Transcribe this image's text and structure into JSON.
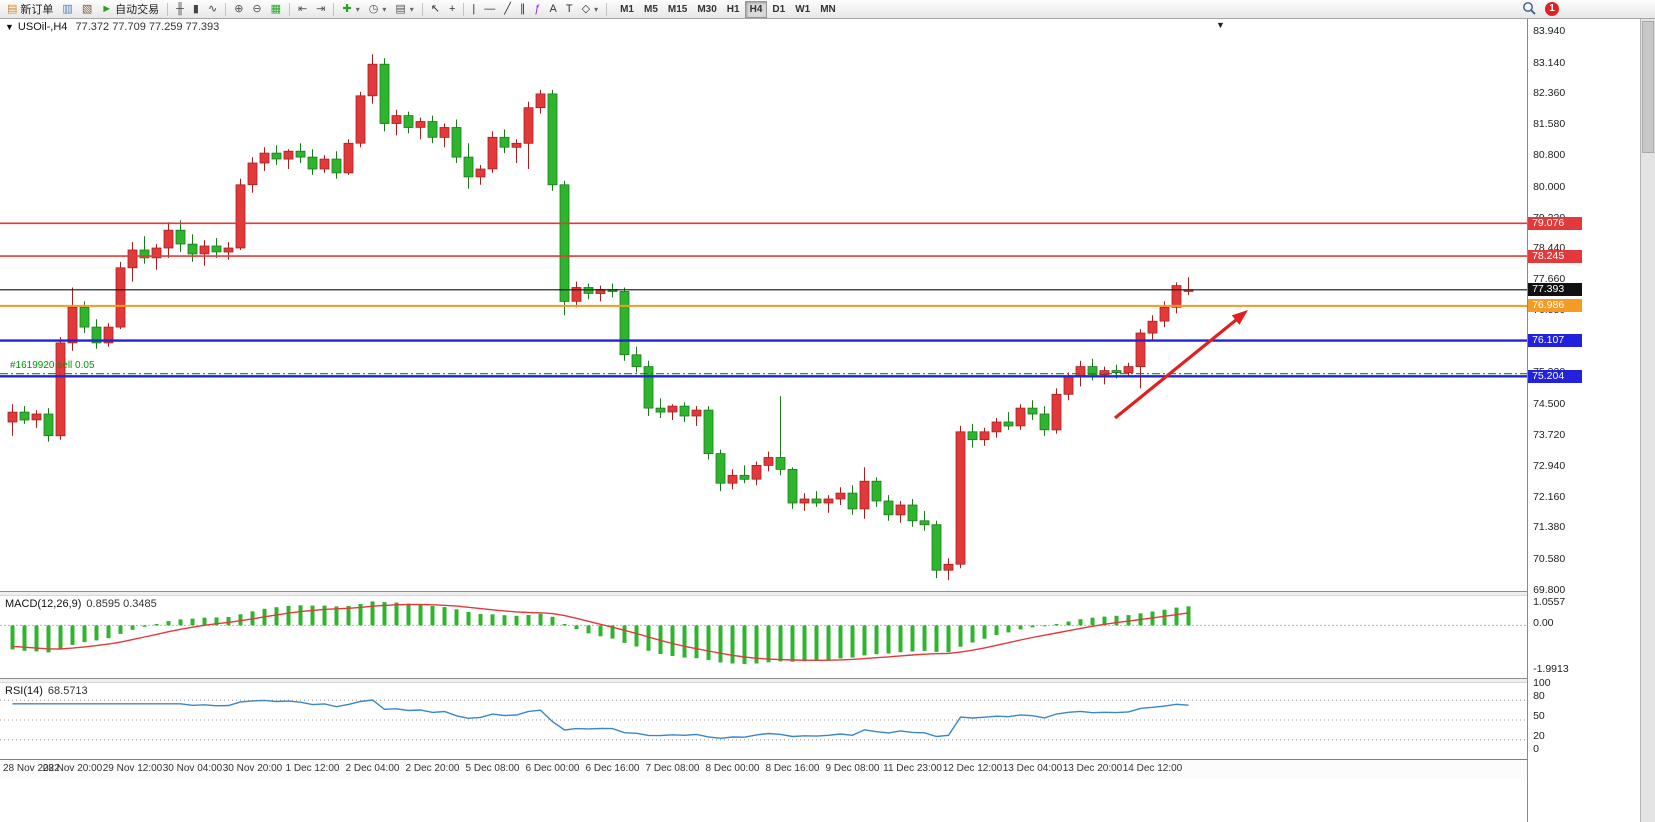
{
  "toolbar": {
    "badge": "1",
    "left_items": [
      {
        "name": "new-order-button",
        "glyph": "▤",
        "glyph_color": "#d08a2e",
        "label": "新订单"
      },
      {
        "name": "chart-window-icon",
        "glyph": "▥",
        "glyph_color": "#4a7ebb"
      },
      {
        "name": "profiles-icon",
        "glyph": "▧",
        "glyph_color": "#7a5c2e"
      },
      {
        "name": "autotrading-button",
        "glyph": "►",
        "glyph_color": "#23a523",
        "label": "自动交易"
      },
      {
        "sep": true
      },
      {
        "name": "bar-chart-icon",
        "glyph": "╫",
        "glyph_color": "#444"
      },
      {
        "name": "candlestick-chart-icon",
        "glyph": "▮",
        "glyph_color": "#444"
      },
      {
        "name": "line-chart-icon",
        "glyph": "∿",
        "glyph_color": "#444"
      },
      {
        "sep": true
      },
      {
        "name": "zoom-in-icon",
        "glyph": "⊕",
        "glyph_color": "#555"
      },
      {
        "name": "zoom-out-icon",
        "glyph": "⊖",
        "glyph_color": "#555"
      },
      {
        "name": "tile-windows-icon",
        "glyph": "▦",
        "glyph_color": "#23a523"
      },
      {
        "sep": true
      },
      {
        "name": "auto-scroll-icon",
        "glyph": "⇤",
        "glyph_color": "#555"
      },
      {
        "name": "chart-shift-icon",
        "glyph": "⇥",
        "glyph_color": "#555"
      },
      {
        "sep": true
      },
      {
        "name": "indicators-icon",
        "glyph": "✚",
        "glyph_color": "#23a523",
        "dropdown": true
      },
      {
        "name": "periods-icon",
        "glyph": "◷",
        "glyph_color": "#555",
        "dropdown": true
      },
      {
        "name": "templates-icon",
        "glyph": "▤",
        "glyph_color": "#555",
        "dropdown": true
      },
      {
        "sep": true
      },
      {
        "name": "cursor-icon",
        "glyph": "↖",
        "glyph_color": "#333"
      },
      {
        "name": "crosshair-icon",
        "glyph": "+",
        "glyph_color": "#333"
      },
      {
        "sep": true
      },
      {
        "name": "vertical-line-icon",
        "glyph": "|",
        "glyph_color": "#333"
      },
      {
        "name": "horizontal-line-icon",
        "glyph": "—",
        "glyph_color": "#333"
      },
      {
        "name": "trendline-icon",
        "glyph": "╱",
        "glyph_color": "#333"
      },
      {
        "name": "equidistant-channel-icon",
        "glyph": "∥",
        "glyph_color": "#333"
      },
      {
        "name": "fibonacci-icon",
        "glyph": "ƒ",
        "glyph_color": "#8a2be2"
      },
      {
        "name": "text-icon",
        "glyph": "A",
        "glyph_color": "#333"
      },
      {
        "name": "text-label-icon",
        "glyph": "T",
        "glyph_color": "#333"
      },
      {
        "name": "arrows-icon",
        "glyph": "◇",
        "glyph_color": "#333",
        "dropdown": true
      },
      {
        "sep": true
      }
    ],
    "timeframes": [
      "M1",
      "M5",
      "M15",
      "M30",
      "H1",
      "H4",
      "D1",
      "W1",
      "MN"
    ],
    "active_timeframe": "H4"
  },
  "chart_data": {
    "type": "candlestick",
    "symbol": "USOil-",
    "timeframe": "H4",
    "title": "USOil-,H4",
    "ohlc_display": "77.372 77.709 77.259 77.393",
    "up_color": "#e23a3a",
    "down_color": "#2db52d",
    "price_axis_ticks": [
      "83.940",
      "83.140",
      "82.360",
      "81.580",
      "80.800",
      "80.000",
      "79.220",
      "78.440",
      "77.660",
      "76.880",
      "76.100",
      "75.320",
      "74.500",
      "73.720",
      "72.940",
      "72.160",
      "71.380",
      "70.580",
      "69.800"
    ],
    "time_axis": [
      "28 Nov 2022",
      "28 Nov 20:00",
      "29 Nov 12:00",
      "30 Nov 04:00",
      "30 Nov 20:00",
      "1 Dec 12:00",
      "2 Dec 04:00",
      "2 Dec 20:00",
      "5 Dec 08:00",
      "6 Dec 00:00",
      "6 Dec 16:00",
      "7 Dec 08:00",
      "8 Dec 00:00",
      "8 Dec 16:00",
      "9 Dec 08:00",
      "11 Dec 23:00",
      "12 Dec 12:00",
      "13 Dec 04:00",
      "13 Dec 20:00",
      "14 Dec 12:00"
    ],
    "hlines": [
      {
        "name": "resistance-line-1",
        "value": 79.076,
        "label": "79.076",
        "color": "#e23a3a",
        "width": 1.6
      },
      {
        "name": "resistance-line-2",
        "value": 78.245,
        "label": "78.245",
        "color": "#e23a3a",
        "width": 1.6
      },
      {
        "name": "current-price-line",
        "value": 77.393,
        "label": "77.393",
        "color": "#111111",
        "width": 1.2
      },
      {
        "name": "pivot-line",
        "value": 76.986,
        "label": "76.986",
        "color": "#f59a23",
        "width": 2
      },
      {
        "name": "support-line-1",
        "value": 76.107,
        "label": "76.107",
        "color": "#2222dd",
        "width": 2.4
      },
      {
        "name": "support-line-2",
        "value": 75.204,
        "label": "75.204",
        "color": "#2222dd",
        "width": 2.4
      }
    ],
    "order_line": {
      "label": "#1619920 sell 0.05",
      "value": 75.27,
      "color": "#009600"
    },
    "trend_arrow": {
      "color": "#e02020"
    },
    "candles": [
      [
        74.05,
        74.5,
        73.7,
        74.3
      ],
      [
        74.3,
        74.45,
        74.0,
        74.1
      ],
      [
        74.1,
        74.35,
        73.9,
        74.25
      ],
      [
        74.25,
        74.4,
        73.55,
        73.7
      ],
      [
        73.7,
        76.2,
        73.6,
        76.05
      ],
      [
        76.05,
        77.45,
        75.85,
        76.95
      ],
      [
        76.95,
        77.1,
        76.3,
        76.45
      ],
      [
        76.45,
        76.65,
        75.9,
        76.05
      ],
      [
        76.05,
        76.55,
        75.95,
        76.45
      ],
      [
        76.45,
        78.1,
        76.4,
        77.95
      ],
      [
        77.95,
        78.6,
        77.6,
        78.4
      ],
      [
        78.4,
        78.75,
        78.05,
        78.2
      ],
      [
        78.2,
        78.55,
        77.9,
        78.45
      ],
      [
        78.45,
        79.1,
        78.2,
        78.9
      ],
      [
        78.9,
        79.15,
        78.35,
        78.55
      ],
      [
        78.55,
        78.8,
        78.1,
        78.3
      ],
      [
        78.3,
        78.65,
        78.0,
        78.5
      ],
      [
        78.5,
        78.7,
        78.2,
        78.35
      ],
      [
        78.35,
        78.6,
        78.15,
        78.45
      ],
      [
        78.45,
        80.2,
        78.4,
        80.05
      ],
      [
        80.05,
        80.75,
        79.85,
        80.6
      ],
      [
        80.6,
        81.0,
        80.4,
        80.85
      ],
      [
        80.85,
        81.05,
        80.55,
        80.7
      ],
      [
        80.7,
        80.95,
        80.45,
        80.9
      ],
      [
        80.9,
        81.1,
        80.6,
        80.75
      ],
      [
        80.75,
        80.95,
        80.3,
        80.45
      ],
      [
        80.45,
        80.8,
        80.35,
        80.7
      ],
      [
        80.7,
        80.9,
        80.2,
        80.35
      ],
      [
        80.35,
        81.2,
        80.3,
        81.1
      ],
      [
        81.1,
        82.4,
        81.0,
        82.3
      ],
      [
        82.3,
        83.35,
        82.1,
        83.1
      ],
      [
        83.1,
        83.25,
        81.4,
        81.6
      ],
      [
        81.6,
        81.95,
        81.3,
        81.8
      ],
      [
        81.8,
        81.9,
        81.35,
        81.5
      ],
      [
        81.5,
        81.75,
        81.2,
        81.65
      ],
      [
        81.65,
        81.8,
        81.1,
        81.25
      ],
      [
        81.25,
        81.6,
        81.0,
        81.5
      ],
      [
        81.5,
        81.7,
        80.6,
        80.75
      ],
      [
        80.75,
        81.1,
        79.95,
        80.25
      ],
      [
        80.25,
        80.55,
        80.05,
        80.45
      ],
      [
        80.45,
        81.4,
        80.35,
        81.25
      ],
      [
        81.25,
        81.45,
        80.85,
        81.0
      ],
      [
        81.0,
        81.2,
        80.6,
        81.1
      ],
      [
        81.1,
        82.15,
        80.45,
        82.0
      ],
      [
        82.0,
        82.45,
        81.85,
        82.35
      ],
      [
        82.35,
        82.45,
        79.9,
        80.05
      ],
      [
        80.05,
        80.15,
        76.75,
        77.1
      ],
      [
        77.1,
        77.6,
        76.95,
        77.45
      ],
      [
        77.45,
        77.55,
        77.15,
        77.3
      ],
      [
        77.3,
        77.5,
        77.1,
        77.4
      ],
      [
        77.4,
        77.55,
        77.2,
        77.35
      ],
      [
        77.35,
        77.45,
        75.6,
        75.75
      ],
      [
        75.75,
        75.95,
        75.3,
        75.45
      ],
      [
        75.45,
        75.6,
        74.2,
        74.4
      ],
      [
        74.4,
        74.65,
        74.15,
        74.3
      ],
      [
        74.3,
        74.5,
        74.1,
        74.45
      ],
      [
        74.45,
        74.55,
        74.05,
        74.2
      ],
      [
        74.2,
        74.45,
        73.95,
        74.35
      ],
      [
        74.35,
        74.45,
        73.1,
        73.25
      ],
      [
        73.25,
        73.35,
        72.3,
        72.5
      ],
      [
        72.5,
        72.85,
        72.35,
        72.7
      ],
      [
        72.7,
        72.95,
        72.5,
        72.6
      ],
      [
        72.6,
        73.05,
        72.45,
        72.95
      ],
      [
        72.95,
        73.3,
        72.8,
        73.15
      ],
      [
        73.15,
        74.7,
        72.7,
        72.85
      ],
      [
        72.85,
        72.9,
        71.85,
        72.0
      ],
      [
        72.0,
        72.25,
        71.8,
        72.1
      ],
      [
        72.1,
        72.3,
        71.9,
        72.0
      ],
      [
        72.0,
        72.2,
        71.75,
        72.1
      ],
      [
        72.1,
        72.4,
        71.95,
        72.25
      ],
      [
        72.25,
        72.45,
        71.7,
        71.85
      ],
      [
        71.85,
        72.9,
        71.6,
        72.55
      ],
      [
        72.55,
        72.65,
        71.9,
        72.05
      ],
      [
        72.05,
        72.2,
        71.55,
        71.7
      ],
      [
        71.7,
        72.05,
        71.5,
        71.95
      ],
      [
        71.95,
        72.1,
        71.4,
        71.55
      ],
      [
        71.55,
        71.8,
        71.3,
        71.45
      ],
      [
        71.45,
        71.55,
        70.1,
        70.3
      ],
      [
        70.3,
        70.6,
        70.05,
        70.45
      ],
      [
        70.45,
        73.95,
        70.35,
        73.8
      ],
      [
        73.8,
        74.0,
        73.4,
        73.6
      ],
      [
        73.6,
        73.9,
        73.45,
        73.8
      ],
      [
        73.8,
        74.15,
        73.65,
        74.05
      ],
      [
        74.05,
        74.3,
        73.85,
        73.95
      ],
      [
        73.95,
        74.5,
        73.85,
        74.4
      ],
      [
        74.4,
        74.6,
        74.1,
        74.25
      ],
      [
        74.25,
        74.45,
        73.7,
        73.85
      ],
      [
        73.85,
        74.9,
        73.75,
        74.75
      ],
      [
        74.75,
        75.3,
        74.6,
        75.2
      ],
      [
        75.2,
        75.6,
        74.95,
        75.45
      ],
      [
        75.45,
        75.65,
        75.1,
        75.25
      ],
      [
        75.25,
        75.45,
        75.0,
        75.35
      ],
      [
        75.35,
        75.5,
        75.15,
        75.3
      ],
      [
        75.3,
        75.55,
        75.2,
        75.45
      ],
      [
        75.45,
        76.4,
        74.9,
        76.3
      ],
      [
        76.3,
        76.75,
        76.1,
        76.6
      ],
      [
        76.6,
        77.1,
        76.45,
        76.95
      ],
      [
        76.95,
        77.58,
        76.8,
        77.5
      ],
      [
        77.372,
        77.709,
        77.259,
        77.393
      ]
    ]
  },
  "macd": {
    "name": "MACD(12,26,9)",
    "values": "0.8595 0.3485",
    "fast": 12,
    "slow": 26,
    "signal": 9,
    "axis_labels": [
      "1.0557",
      "0.00",
      "-1.9913"
    ],
    "histogram_color": "#2db52d",
    "signal_color": "#e23a3a"
  },
  "rsi": {
    "name": "RSI(14)",
    "value": "68.5713",
    "period": 14,
    "levels": [
      80,
      50,
      20
    ],
    "axis_labels": [
      "100",
      "80",
      "50",
      "20",
      "0"
    ],
    "line_color": "#3a87c8"
  }
}
